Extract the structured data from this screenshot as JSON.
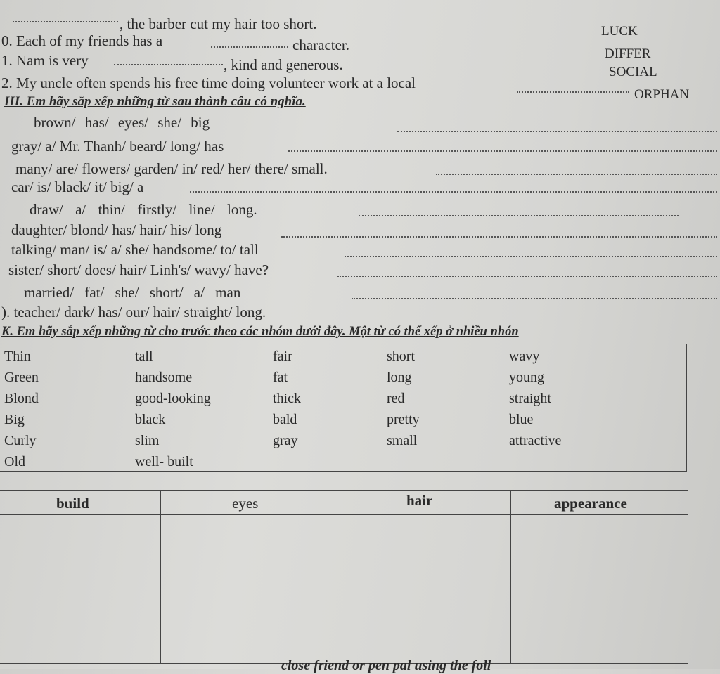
{
  "exercise_ii": {
    "items": [
      {
        "prefix": ".",
        "blank": "",
        "text": ", the barber cut my hair too short."
      },
      {
        "prefix": "0. Each of my friends has a",
        "text": "character."
      },
      {
        "prefix": "1. Nam is very",
        "text": ", kind and generous."
      },
      {
        "prefix": "2. My uncle often spends his free time doing volunteer work at a local",
        "text": ""
      }
    ],
    "word_bank": [
      "LUCK",
      "DIFFER",
      "SOCIAL",
      "ORPHAN"
    ]
  },
  "exercise_iii": {
    "heading": "III. Em hãy sắp xếp những từ sau thành câu có nghĩa.",
    "items": [
      "brown/   has/   eyes/   she/   big",
      "gray/ a/ Mr. Thanh/ beard/ long/ has",
      "many/ are/ flowers/ garden/ in/ red/ her/ there/ small.",
      "car/ is/ black/ it/ big/ a",
      "draw/   a/   thin/   firstly/   line/   long.",
      "daughter/ blond/ has/ hair/ his/ long",
      "talking/ man/ is/ a/ she/ handsome/ to/ tall",
      "sister/ short/ does/ hair/ Linh's/ wavy/ have?",
      "married/   fat/   she/   short/   a/   man",
      "). teacher/ dark/ has/ our/ hair/ straight/ long."
    ]
  },
  "exercise_iv": {
    "heading": "K. Em hãy sắp xếp những từ cho trước theo các nhóm dưới đây. Một từ có thể xếp ở nhiều nhón",
    "word_columns": [
      [
        "Thin",
        "Green",
        "Blond",
        "Big",
        "Curly",
        "Old"
      ],
      [
        "tall",
        "handsome",
        "good-looking",
        "black",
        "slim",
        "well- built"
      ],
      [
        "fair",
        "fat",
        "thick",
        "bald",
        "gray"
      ],
      [
        "short",
        "long",
        "red",
        "pretty",
        "small"
      ],
      [
        "wavy",
        "young",
        "straight",
        "blue",
        "attractive"
      ]
    ],
    "table_headers": [
      "build",
      "eyes",
      "hair",
      "appearance"
    ]
  },
  "footer_fragment": "close friend or pen pal using the foll"
}
